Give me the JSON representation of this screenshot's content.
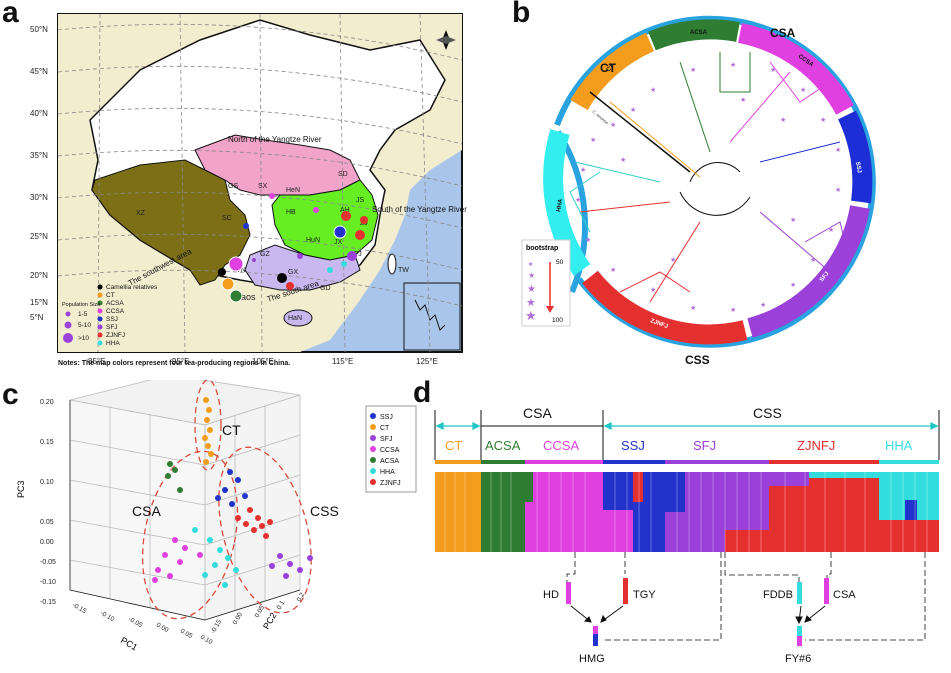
{
  "panels": {
    "a": "a",
    "b": "b",
    "c": "c",
    "d": "d"
  },
  "map": {
    "lat_labels": [
      "50°N",
      "45°N",
      "40°N",
      "35°N",
      "30°N",
      "25°N",
      "20°N",
      "15°N",
      "5°N"
    ],
    "lon_labels": [
      "85°E",
      "95°E",
      "105°E",
      "115°E",
      "125°E"
    ],
    "region_labels": [
      "North of the Yangtze River",
      "South of the Yangtze River",
      "The southwest area",
      "The south area"
    ],
    "province_labels": [
      "XZ",
      "SC",
      "GS",
      "SX",
      "HeN",
      "SD",
      "HB",
      "AH",
      "JS",
      "ZJ",
      "HuN",
      "JX",
      "FJ",
      "GZ",
      "YN",
      "GX",
      "GD",
      "TW",
      "HaN",
      "Laos"
    ],
    "legend_groups": [
      "Camellia relatives",
      "CT",
      "ACSA",
      "CCSA",
      "SSJ",
      "SFJ",
      "ZJNFJ",
      "HHA"
    ],
    "legend_colors": [
      "#000000",
      "#f39c1e",
      "#2e7d32",
      "#e040e0",
      "#2233cc",
      "#9b40d8",
      "#e53030",
      "#33dddd"
    ],
    "pop_size_title": "Population Size",
    "pop_sizes": [
      "1-5",
      "5-10",
      ">10"
    ],
    "note": "Notes: The map colors represent four tea-producing regions in China."
  },
  "tree": {
    "outer_labels": [
      "CT",
      "CSA",
      "CSS"
    ],
    "clades": [
      "CT",
      "ACSA",
      "CCSA",
      "SSJ",
      "SFJ",
      "ZJNFJ",
      "HHA"
    ],
    "bootstrap_title": "bootstrap",
    "bootstrap_values": [
      "50",
      "100"
    ],
    "tip_label": "C. sinensis"
  },
  "pca": {
    "axis_x": "PC1",
    "axis_y": "PC2",
    "axis_z": "PC3",
    "z_ticks": [
      "0.20",
      "0.15",
      "0.10",
      "0.05",
      "0.00",
      "-0.05",
      "-0.10",
      "-0.15"
    ],
    "x_ticks": [
      "-0.15",
      "-0.10",
      "-0.05",
      "0.00",
      "0.05",
      "0.10"
    ],
    "y_ticks": [
      "-0.15",
      "0.00",
      "0.05",
      "0.1",
      "0.2"
    ],
    "groups": [
      "CT",
      "CSA",
      "CSS"
    ],
    "legend": [
      "SSJ",
      "CT",
      "SFJ",
      "CCSA",
      "ACSA",
      "HHA",
      "ZJNFJ"
    ],
    "legend_colors": [
      "#2233cc",
      "#f39c1e",
      "#9b40d8",
      "#e040e0",
      "#2e7d32",
      "#33dddd",
      "#e53030"
    ]
  },
  "structure": {
    "top_groups": [
      "CSA",
      "CSS"
    ],
    "clusters": [
      "CT",
      "ACSA",
      "CCSA",
      "SSJ",
      "SFJ",
      "ZJNFJ",
      "HHA"
    ],
    "cluster_colors": [
      "#f39c1e",
      "#2e7d32",
      "#e040e0",
      "#2233cc",
      "#9b40d8",
      "#e53030",
      "#33dddd"
    ],
    "samples": [
      "HD",
      "TGY",
      "FDDB",
      "CSA"
    ],
    "hybrids": [
      "HMG",
      "FY#6"
    ]
  }
}
